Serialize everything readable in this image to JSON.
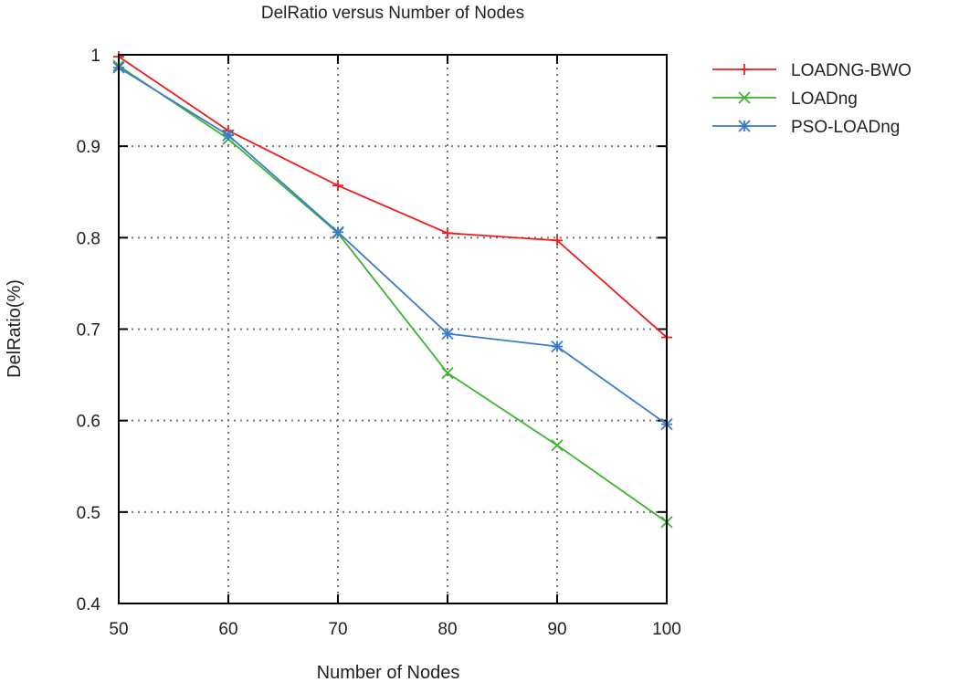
{
  "chart_data": {
    "type": "line",
    "title": "DelRatio versus Number of Nodes",
    "xlabel": "Number of Nodes",
    "ylabel": "DelRatio(%)",
    "x": [
      50,
      60,
      70,
      80,
      90,
      100
    ],
    "xlim": [
      50,
      100
    ],
    "ylim": [
      0.4,
      1
    ],
    "xticks": [
      "50",
      "60",
      "70",
      "80",
      "90",
      "100"
    ],
    "yticks": [
      "0.4",
      "0.5",
      "0.6",
      "0.7",
      "0.8",
      "0.9",
      "1"
    ],
    "grid": true,
    "legend_position": "outside-top-right",
    "series": [
      {
        "name": "LOADNG-BWO",
        "color": "#ee1c1c",
        "marker": "plus",
        "values": [
          0.998,
          0.917,
          0.857,
          0.805,
          0.797,
          0.691
        ]
      },
      {
        "name": "LOADng",
        "color": "#3cb52e",
        "marker": "cross",
        "values": [
          0.988,
          0.908,
          0.805,
          0.652,
          0.573,
          0.489
        ]
      },
      {
        "name": "PSO-LOADng",
        "color": "#3a7bd0",
        "marker": "star",
        "values": [
          0.986,
          0.912,
          0.806,
          0.695,
          0.681,
          0.596
        ]
      }
    ]
  }
}
